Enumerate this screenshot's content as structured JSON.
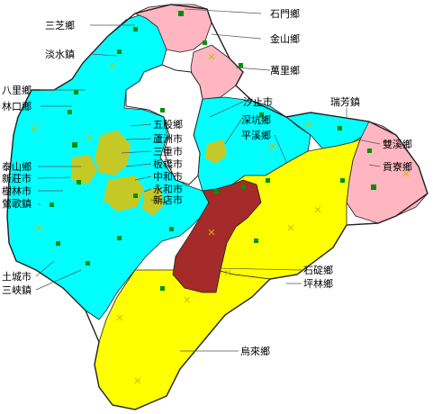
{
  "colors": {
    "cyan": "#00ffff",
    "yellow": "#ffff00",
    "pink": "#ffb6c1",
    "darkred": "#a52a2a",
    "urban": "#e8c000",
    "marker": "#009000"
  },
  "labels": {
    "shimen": "石門鄉",
    "sanzhi": "三芝鄉",
    "jinshan": "金山鄉",
    "tamsui": "淡水鎮",
    "wanli": "萬里鄉",
    "bali": "八里鄉",
    "linkou": "林口鄉",
    "xizhi": "汐止市",
    "ruifang": "瑞芳鎮",
    "wugu": "五股鄉",
    "shenkeng": "深坑鄉",
    "luzhou": "蘆洲市",
    "pingxi": "平溪鄉",
    "sanchong": "三重市",
    "shuangxi": "雙溪鄉",
    "taishan": "泰山鄉",
    "banqiao": "板橋市",
    "xinzhuang": "新莊市",
    "zhonghe": "中和市",
    "gongliao": "貢寮鄉",
    "shulin": "樹林市",
    "yonghe": "永和市",
    "yingge": "鶯歌鎮",
    "xindian": "新店市",
    "shiding": "石碇鄉",
    "tucheng": "土城市",
    "pinglin": "坪林鄉",
    "sanxia": "三峽鎮",
    "wulai": "烏來鄉"
  }
}
